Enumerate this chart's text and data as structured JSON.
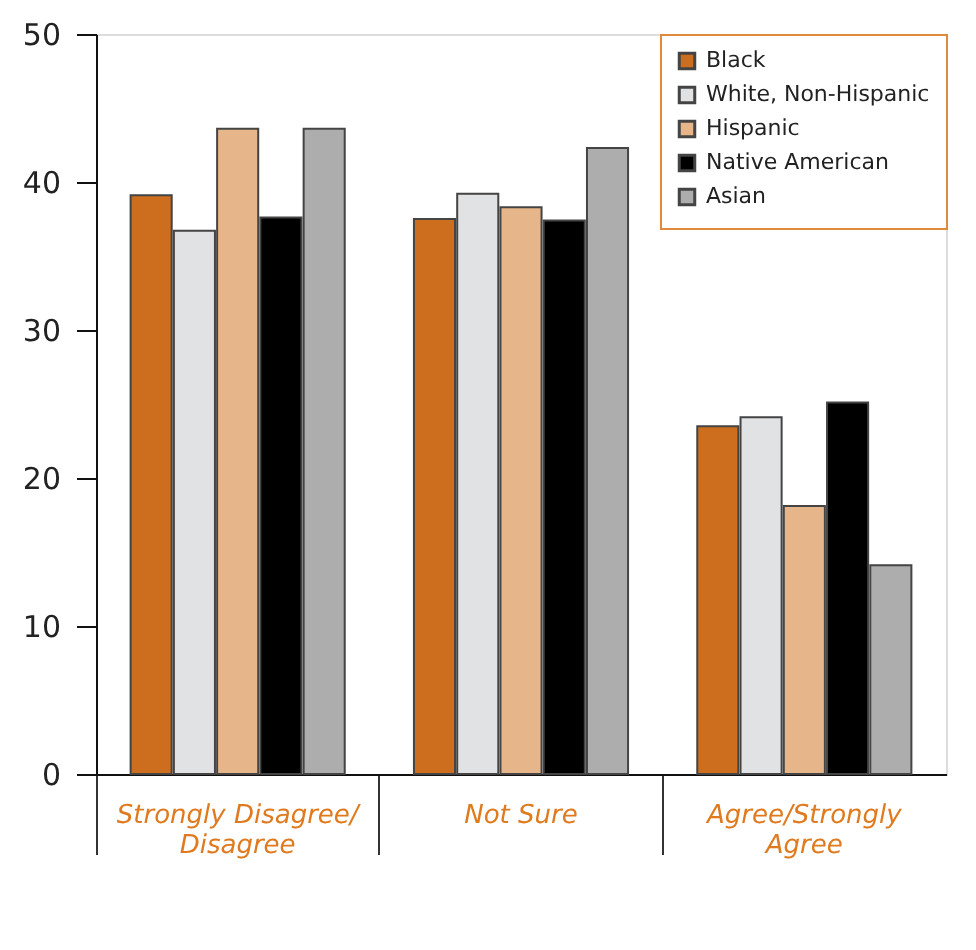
{
  "chart_data": {
    "type": "bar",
    "categories": [
      "Strongly Disagree/\nDisagree",
      "Not Sure",
      "Agree/Strongly\nAgree"
    ],
    "series": [
      {
        "name": "Black",
        "color": "#cc6e1e",
        "values": [
          39.1,
          37.5,
          23.5
        ]
      },
      {
        "name": "White, Non-Hispanic",
        "color": "#e1e2e4",
        "values": [
          36.7,
          39.2,
          24.1
        ]
      },
      {
        "name": "Hispanic",
        "color": "#e6b68a",
        "values": [
          43.6,
          38.3,
          18.1
        ]
      },
      {
        "name": "Native American",
        "color": "#000000",
        "values": [
          37.6,
          37.4,
          25.1
        ]
      },
      {
        "name": "Asian",
        "color": "#adadae",
        "values": [
          43.6,
          42.3,
          14.1
        ]
      }
    ],
    "ylim": [
      0,
      50
    ],
    "yticks": [
      0,
      10,
      20,
      30,
      40,
      50
    ],
    "grid": false,
    "legend": "top right"
  }
}
